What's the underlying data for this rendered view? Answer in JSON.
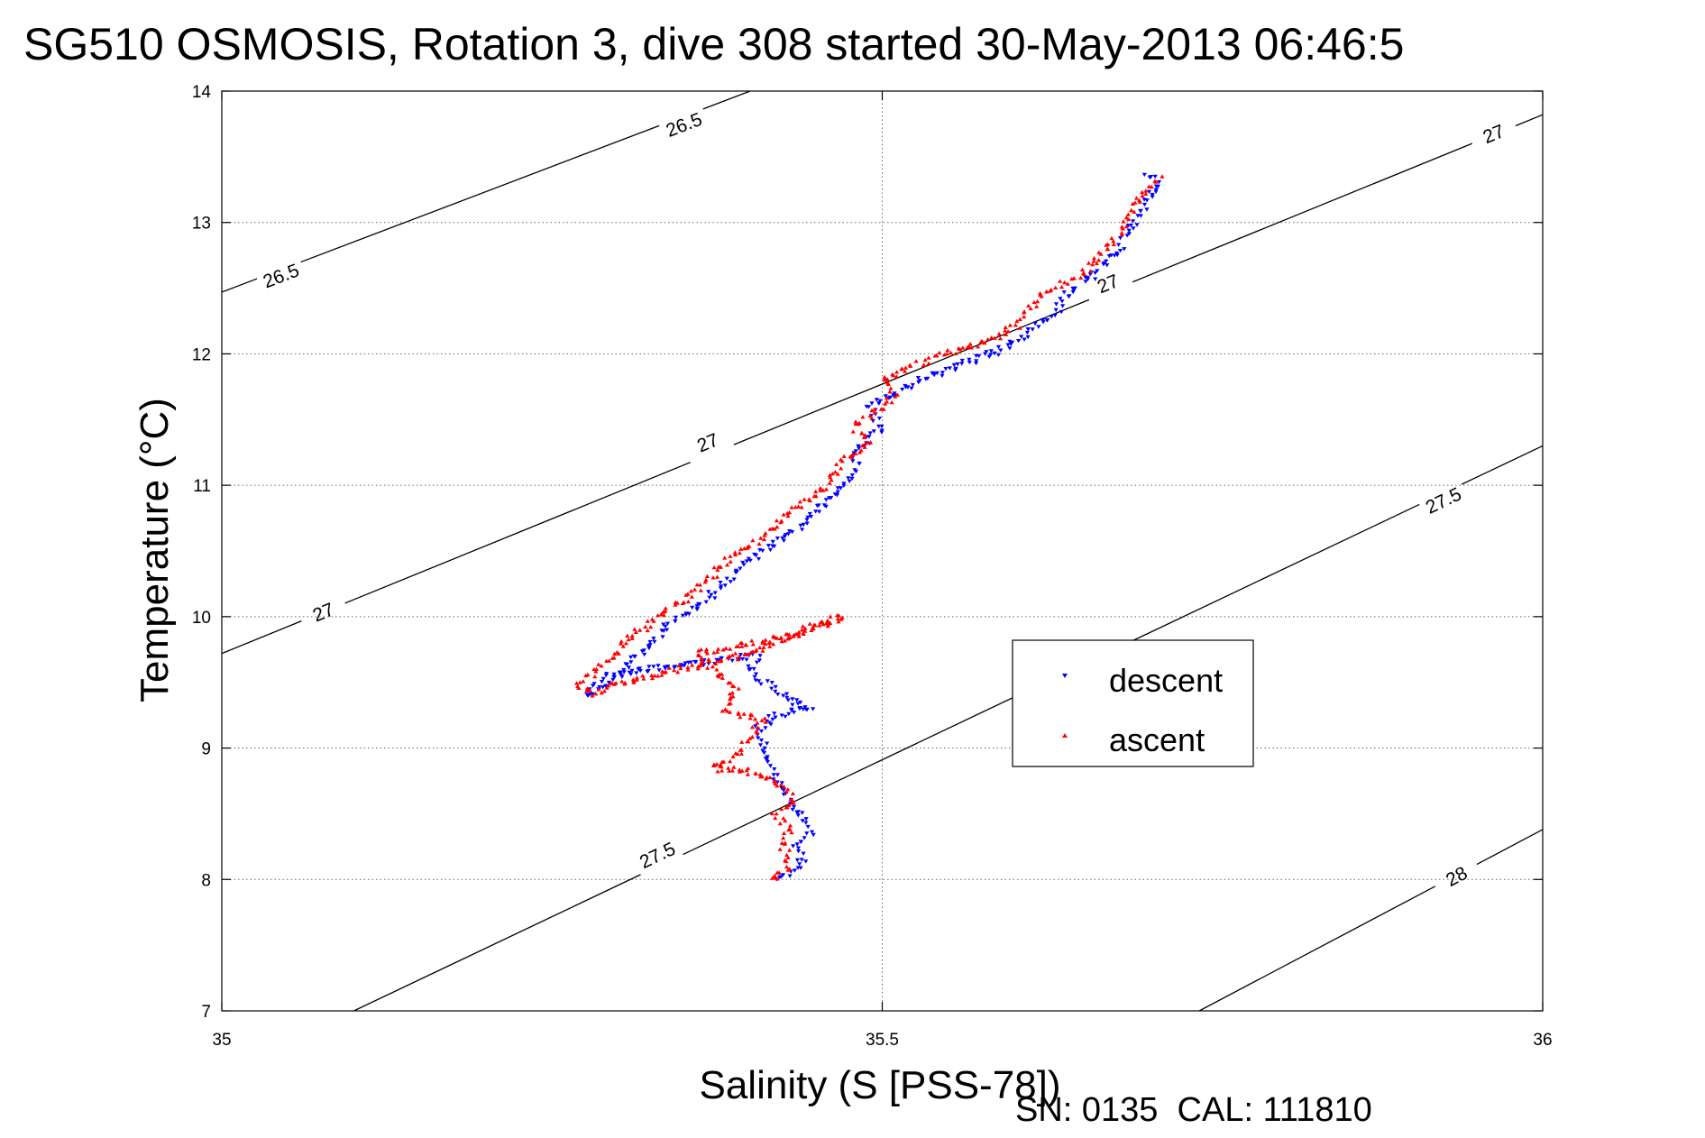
{
  "chart_data": {
    "type": "scatter",
    "title": "SG510 OSMOSIS, Rotation 3, dive 308 started 30-May-2013 06:46:5",
    "xlabel": "Salinity (S [PSS-78])",
    "ylabel": "Temperature (°C)",
    "xlim": [
      35,
      36
    ],
    "ylim": [
      7,
      14
    ],
    "x_ticks": [
      "35",
      "35.5",
      "36"
    ],
    "y_ticks": [
      "7",
      "8",
      "9",
      "10",
      "11",
      "12",
      "13",
      "14"
    ],
    "grid": true,
    "legend_position": "right-center",
    "footer": "SN: 0135  CAL: 111810",
    "contours": [
      {
        "label": "26.5",
        "points": [
          [
            35.0,
            12.47
          ],
          [
            35.4,
            14.0
          ]
        ],
        "label_positions": [
          [
            35.045,
            12.59
          ],
          [
            35.35,
            13.74
          ]
        ]
      },
      {
        "label": "27",
        "points": [
          [
            35.0,
            9.72
          ],
          [
            36.0,
            13.82
          ]
        ],
        "label_positions": [
          [
            35.077,
            10.03
          ],
          [
            35.368,
            11.32
          ],
          [
            35.671,
            12.53
          ],
          [
            35.963,
            13.67
          ]
        ]
      },
      {
        "label": "27.5",
        "points": [
          [
            35.1,
            7.0
          ],
          [
            36.0,
            11.3
          ]
        ],
        "label_positions": [
          [
            35.33,
            8.18
          ],
          [
            35.925,
            10.88
          ]
        ]
      },
      {
        "label": "28",
        "points": [
          [
            35.74,
            7.0
          ],
          [
            36.0,
            8.38
          ]
        ],
        "label_positions": [
          [
            35.935,
            8.02
          ]
        ]
      }
    ],
    "series": [
      {
        "name": "descent",
        "color": "#0000ff",
        "marker": "triangle-down",
        "path": [
          [
            35.42,
            8.0
          ],
          [
            35.43,
            8.05
          ],
          [
            35.44,
            8.15
          ],
          [
            35.435,
            8.25
          ],
          [
            35.445,
            8.35
          ],
          [
            35.44,
            8.45
          ],
          [
            35.43,
            8.55
          ],
          [
            35.425,
            8.7
          ],
          [
            35.415,
            8.85
          ],
          [
            35.41,
            9.0
          ],
          [
            35.405,
            9.15
          ],
          [
            35.42,
            9.25
          ],
          [
            35.445,
            9.3
          ],
          [
            35.425,
            9.4
          ],
          [
            35.41,
            9.5
          ],
          [
            35.4,
            9.6
          ],
          [
            35.405,
            9.7
          ],
          [
            35.36,
            9.65
          ],
          [
            35.29,
            9.55
          ],
          [
            35.28,
            9.45
          ],
          [
            35.28,
            9.4
          ],
          [
            35.3,
            9.55
          ],
          [
            35.32,
            9.75
          ],
          [
            35.34,
            9.95
          ],
          [
            35.37,
            10.15
          ],
          [
            35.39,
            10.35
          ],
          [
            35.41,
            10.5
          ],
          [
            35.44,
            10.7
          ],
          [
            35.46,
            10.9
          ],
          [
            35.48,
            11.1
          ],
          [
            35.48,
            11.25
          ],
          [
            35.5,
            11.45
          ],
          [
            35.49,
            11.6
          ],
          [
            35.53,
            11.8
          ],
          [
            35.56,
            11.92
          ],
          [
            35.59,
            12.03
          ],
          [
            35.61,
            12.15
          ],
          [
            35.63,
            12.3
          ],
          [
            35.64,
            12.45
          ],
          [
            35.66,
            12.6
          ],
          [
            35.68,
            12.8
          ],
          [
            35.69,
            13.0
          ],
          [
            35.7,
            13.15
          ],
          [
            35.71,
            13.3
          ],
          [
            35.7,
            13.4
          ]
        ]
      },
      {
        "name": "ascent",
        "color": "#ff0000",
        "marker": "triangle-up",
        "path": [
          [
            35.415,
            8.0
          ],
          [
            35.43,
            8.1
          ],
          [
            35.425,
            8.25
          ],
          [
            35.43,
            8.4
          ],
          [
            35.42,
            8.5
          ],
          [
            35.435,
            8.6
          ],
          [
            35.42,
            8.75
          ],
          [
            35.4,
            8.82
          ],
          [
            35.37,
            8.85
          ],
          [
            35.39,
            8.95
          ],
          [
            35.4,
            9.1
          ],
          [
            35.41,
            9.2
          ],
          [
            35.38,
            9.3
          ],
          [
            35.39,
            9.45
          ],
          [
            35.37,
            9.6
          ],
          [
            35.36,
            9.72
          ],
          [
            35.4,
            9.8
          ],
          [
            35.43,
            9.85
          ],
          [
            35.45,
            9.93
          ],
          [
            35.47,
            10.0
          ],
          [
            35.44,
            9.9
          ],
          [
            35.4,
            9.72
          ],
          [
            35.3,
            9.5
          ],
          [
            35.28,
            9.42
          ],
          [
            35.27,
            9.48
          ],
          [
            35.29,
            9.65
          ],
          [
            35.31,
            9.85
          ],
          [
            35.33,
            10.0
          ],
          [
            35.36,
            10.2
          ],
          [
            35.38,
            10.4
          ],
          [
            35.41,
            10.6
          ],
          [
            35.43,
            10.8
          ],
          [
            35.46,
            11.0
          ],
          [
            35.47,
            11.2
          ],
          [
            35.49,
            11.3
          ],
          [
            35.48,
            11.45
          ],
          [
            35.5,
            11.6
          ],
          [
            35.51,
            11.7
          ],
          [
            35.5,
            11.8
          ],
          [
            35.52,
            11.9
          ],
          [
            35.55,
            12.0
          ],
          [
            35.58,
            12.1
          ],
          [
            35.6,
            12.2
          ],
          [
            35.61,
            12.32
          ],
          [
            35.62,
            12.45
          ],
          [
            35.65,
            12.6
          ],
          [
            35.67,
            12.8
          ],
          [
            35.685,
            13.0
          ],
          [
            35.695,
            13.2
          ],
          [
            35.71,
            13.35
          ]
        ]
      }
    ]
  }
}
